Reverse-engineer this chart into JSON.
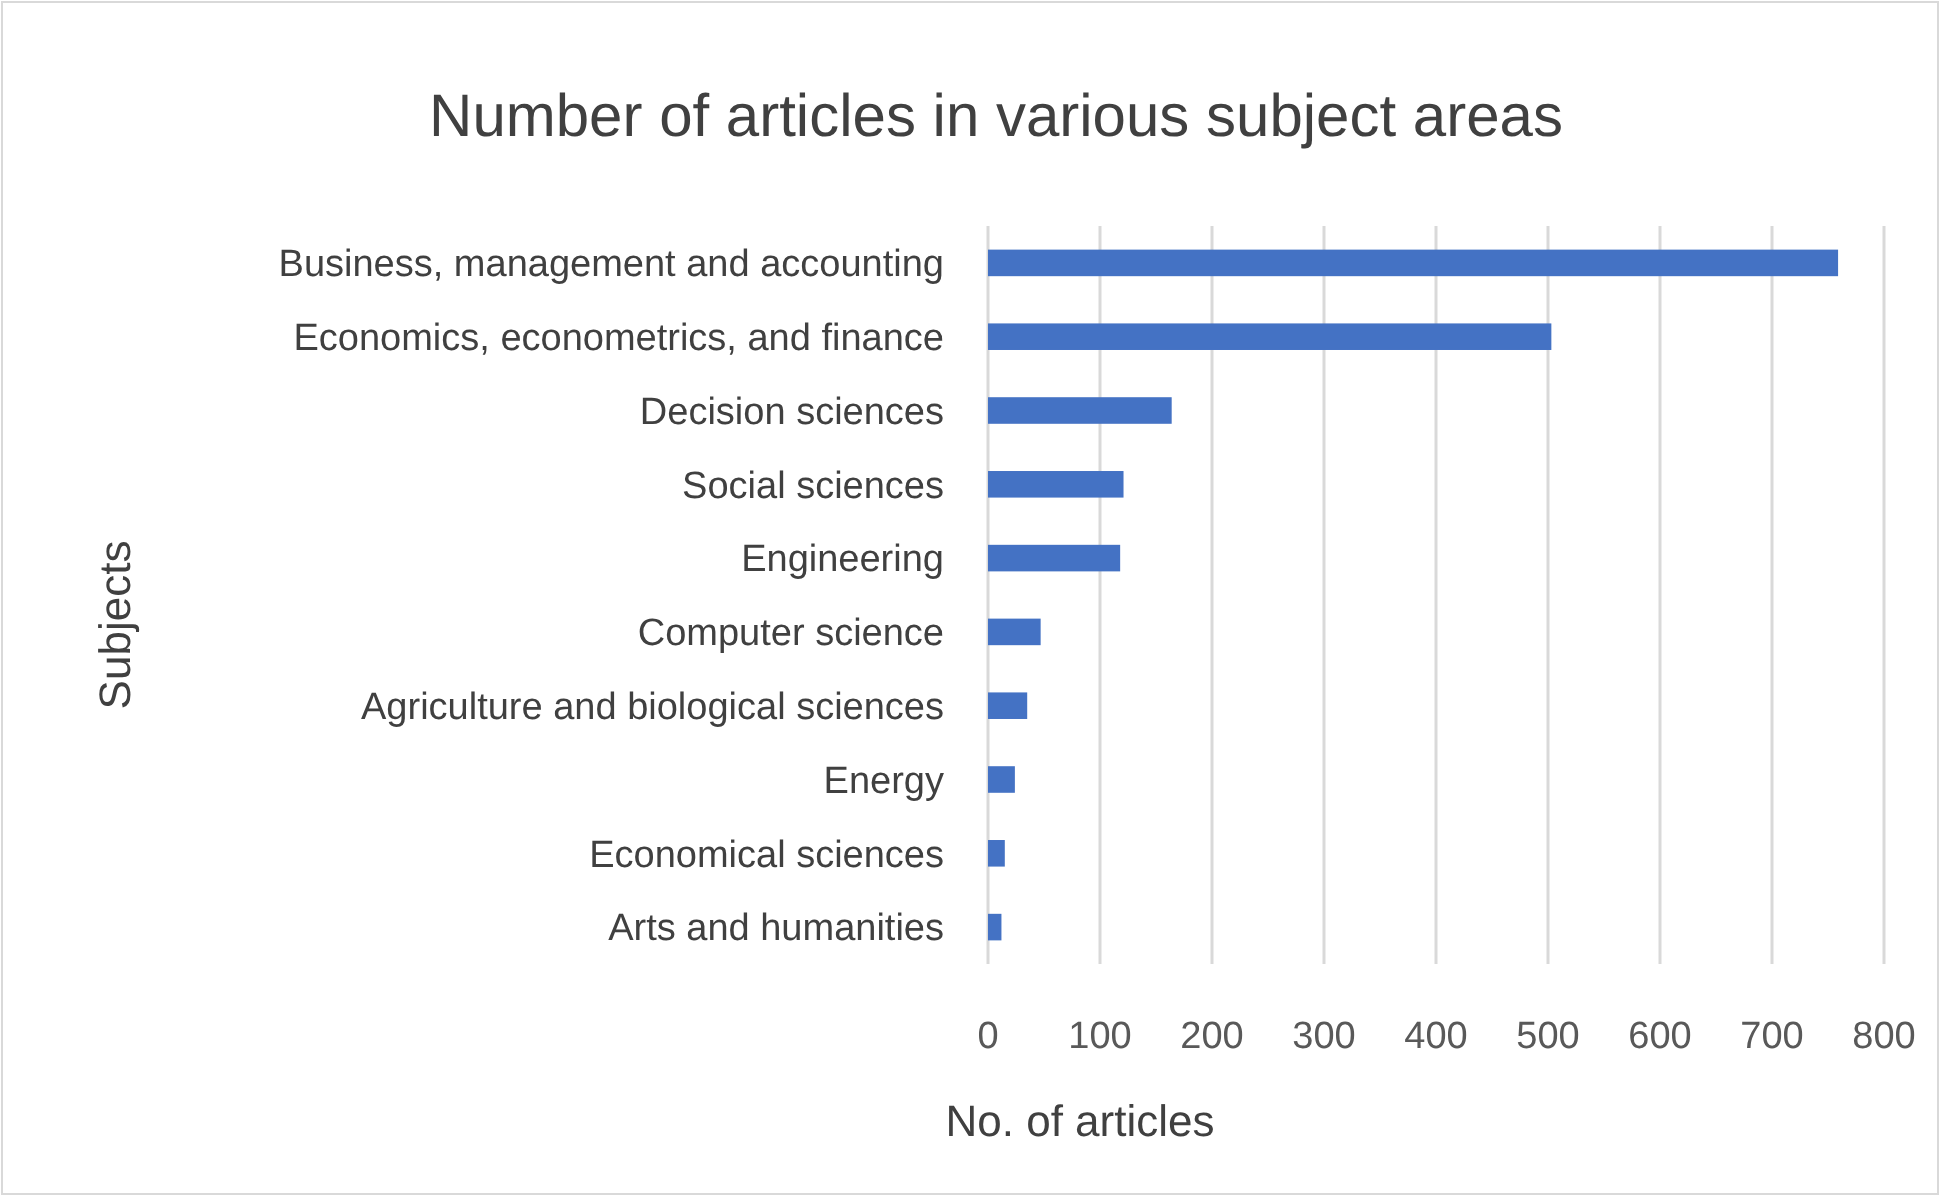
{
  "chart_data": {
    "type": "bar",
    "orientation": "horizontal",
    "title": "Number of articles in various subject areas",
    "xlabel": "No. of articles",
    "ylabel": "Subjects",
    "categories": [
      "Business, management and accounting",
      "Economics, econometrics, and finance",
      "Decision sciences",
      "Social sciences",
      "Engineering",
      "Computer science",
      "Agriculture and biological sciences",
      "Energy",
      "Economical sciences",
      "Arts and humanities"
    ],
    "values": [
      759,
      503,
      164,
      121,
      118,
      47,
      35,
      24,
      15,
      12
    ],
    "color": "#4472c4",
    "xlim": [
      0,
      800
    ],
    "xticks": [
      0,
      100,
      200,
      300,
      400,
      500,
      600,
      700,
      800
    ],
    "grid": "x"
  }
}
